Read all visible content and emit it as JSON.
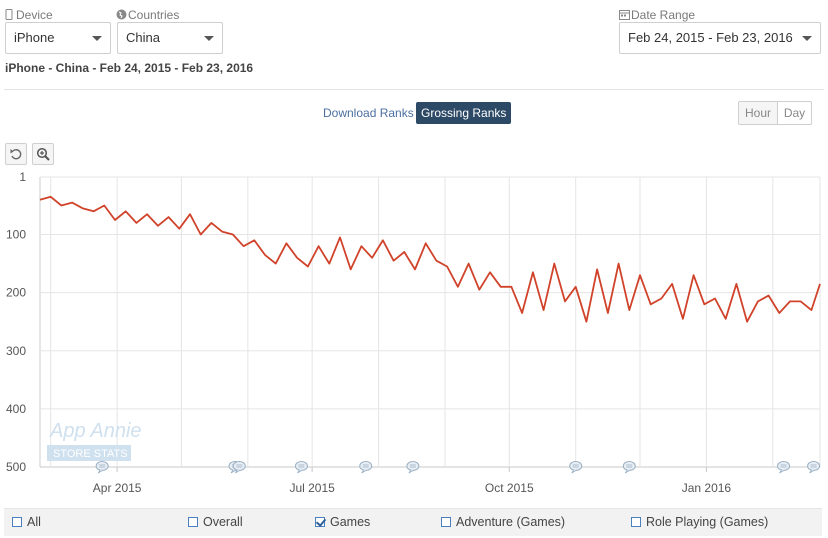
{
  "filters": {
    "device": {
      "label": "Device",
      "value": "iPhone"
    },
    "countries": {
      "label": "Countries",
      "value": "China"
    },
    "date_range": {
      "label": "Date Range",
      "value": "Feb 24, 2015 - Feb 23, 2016"
    }
  },
  "subtitle": "iPhone - China - Feb 24, 2015 - Feb 23, 2016",
  "rank_tabs": [
    {
      "label": "Download Ranks",
      "active": false
    },
    {
      "label": "Grossing Ranks",
      "active": true
    }
  ],
  "granularity": [
    {
      "label": "Hour",
      "active": false
    },
    {
      "label": "Day",
      "active": true
    }
  ],
  "tools": {
    "reset_icon": "undo-icon",
    "zoom_icon": "zoom-in-icon"
  },
  "watermark": {
    "line1": "App Annie",
    "line2": "STORE STATS"
  },
  "legend": [
    {
      "label": "All",
      "checked": false
    },
    {
      "label": "Overall",
      "checked": false
    },
    {
      "label": "Games",
      "checked": true
    },
    {
      "label": "Adventure (Games)",
      "checked": false
    },
    {
      "label": "Role Playing (Games)",
      "checked": false
    }
  ],
  "colors": {
    "line": "#d0432a",
    "accent": "#2c4a66",
    "checkbox": "#4a80c0"
  },
  "chart_data": {
    "type": "line",
    "title": "",
    "xlabel": "",
    "ylabel": "",
    "y_reversed": true,
    "ylim": [
      1,
      500
    ],
    "y_ticks": [
      1,
      100,
      200,
      300,
      400,
      500
    ],
    "y_tick_labels": [
      "1",
      "100",
      "200",
      "300",
      "400",
      "500"
    ],
    "x_range": [
      "2015-02-24",
      "2016-02-23"
    ],
    "x_ticks": [
      "2015-04-01",
      "2015-07-01",
      "2015-10-01",
      "2016-01-01"
    ],
    "x_tick_labels": [
      "Apr 2015",
      "Jul 2015",
      "Oct 2015",
      "Jan 2016"
    ],
    "grid": true,
    "annotation_dates": [
      "2015-03-25",
      "2015-05-26",
      "2015-05-28",
      "2015-06-26",
      "2015-07-26",
      "2015-08-17",
      "2015-11-01",
      "2015-11-26",
      "2016-02-06",
      "2016-02-20"
    ],
    "series": [
      {
        "x": [
          "2015-02-24",
          "2015-03-01",
          "2015-03-06",
          "2015-03-11",
          "2015-03-16",
          "2015-03-21",
          "2015-03-26",
          "2015-03-31",
          "2015-04-05",
          "2015-04-10",
          "2015-04-15",
          "2015-04-20",
          "2015-04-25",
          "2015-04-30",
          "2015-05-05",
          "2015-05-10",
          "2015-05-15",
          "2015-05-20",
          "2015-05-25",
          "2015-05-30",
          "2015-06-04",
          "2015-06-09",
          "2015-06-14",
          "2015-06-19",
          "2015-06-24",
          "2015-06-29",
          "2015-07-04",
          "2015-07-09",
          "2015-07-14",
          "2015-07-19",
          "2015-07-24",
          "2015-07-29",
          "2015-08-03",
          "2015-08-08",
          "2015-08-13",
          "2015-08-18",
          "2015-08-23",
          "2015-08-28",
          "2015-09-02",
          "2015-09-07",
          "2015-09-12",
          "2015-09-17",
          "2015-09-22",
          "2015-09-27",
          "2015-10-02",
          "2015-10-07",
          "2015-10-12",
          "2015-10-17",
          "2015-10-22",
          "2015-10-27",
          "2015-11-01",
          "2015-11-06",
          "2015-11-11",
          "2015-11-16",
          "2015-11-21",
          "2015-11-26",
          "2015-12-01",
          "2015-12-06",
          "2015-12-11",
          "2015-12-16",
          "2015-12-21",
          "2015-12-26",
          "2015-12-31",
          "2016-01-05",
          "2016-01-10",
          "2016-01-15",
          "2016-01-20",
          "2016-01-25",
          "2016-01-30",
          "2016-02-04",
          "2016-02-09",
          "2016-02-14",
          "2016-02-19",
          "2016-02-23"
        ],
        "values": [
          40,
          35,
          50,
          45,
          55,
          60,
          50,
          75,
          60,
          80,
          65,
          85,
          70,
          90,
          65,
          100,
          80,
          95,
          100,
          120,
          110,
          135,
          150,
          115,
          140,
          155,
          120,
          150,
          105,
          160,
          120,
          140,
          110,
          145,
          130,
          160,
          115,
          145,
          155,
          190,
          150,
          195,
          165,
          190,
          190,
          235,
          165,
          230,
          150,
          215,
          190,
          250,
          160,
          235,
          150,
          230,
          170,
          220,
          210,
          185,
          245,
          170,
          220,
          210,
          245,
          185,
          250,
          215,
          205,
          235,
          215,
          215,
          230,
          185
        ]
      }
    ]
  }
}
